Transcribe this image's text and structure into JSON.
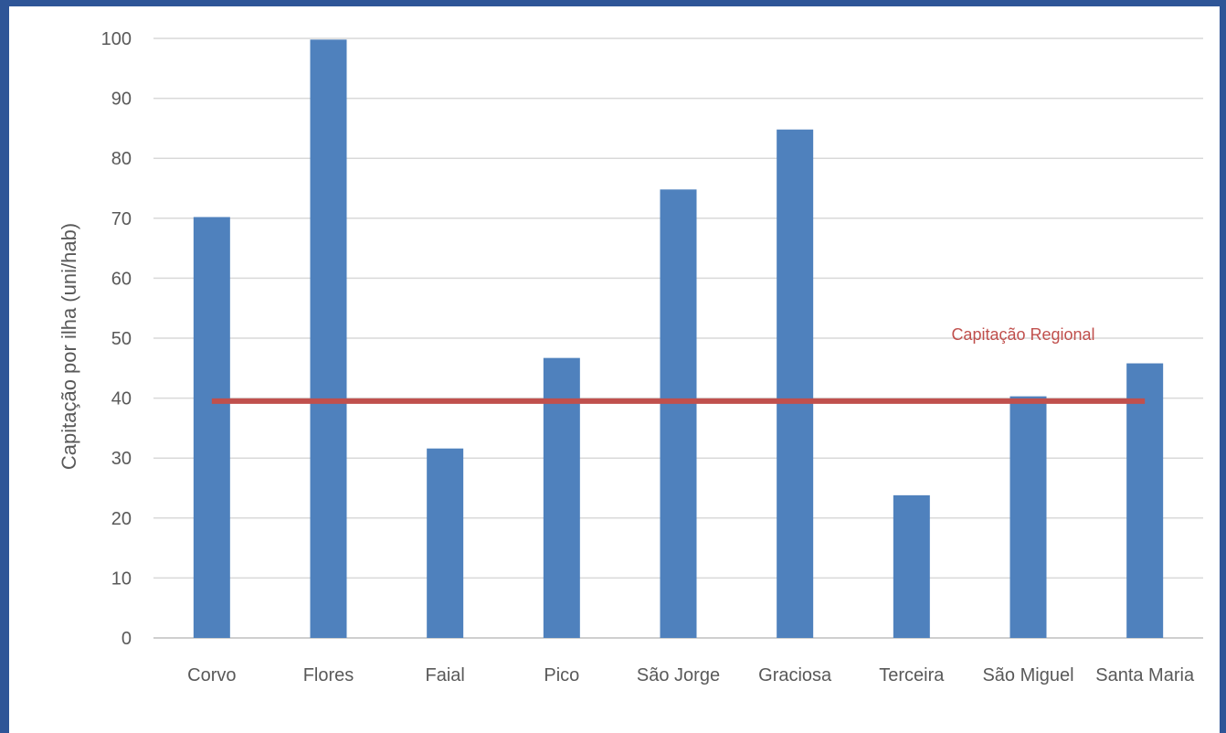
{
  "chart_data": {
    "type": "bar",
    "title": "",
    "xlabel": "",
    "ylabel": "Capitação por ilha (uni/hab)",
    "ylim": [
      0,
      100
    ],
    "yticks": [
      0,
      10,
      20,
      30,
      40,
      50,
      60,
      70,
      80,
      90,
      100
    ],
    "categories": [
      "Corvo",
      "Flores",
      "Faial",
      "Pico",
      "São Jorge",
      "Graciosa",
      "Terceira",
      "São Miguel",
      "Santa Maria"
    ],
    "series": [
      {
        "values": [
          70.2,
          99.8,
          31.6,
          46.7,
          74.8,
          84.8,
          23.8,
          40.3,
          45.8
        ],
        "color": "#4f81bd"
      }
    ],
    "reference_line": {
      "name": "Capitação Regional",
      "value": 39.5,
      "color": "#c0504d"
    },
    "grid": true,
    "legend": "none"
  }
}
